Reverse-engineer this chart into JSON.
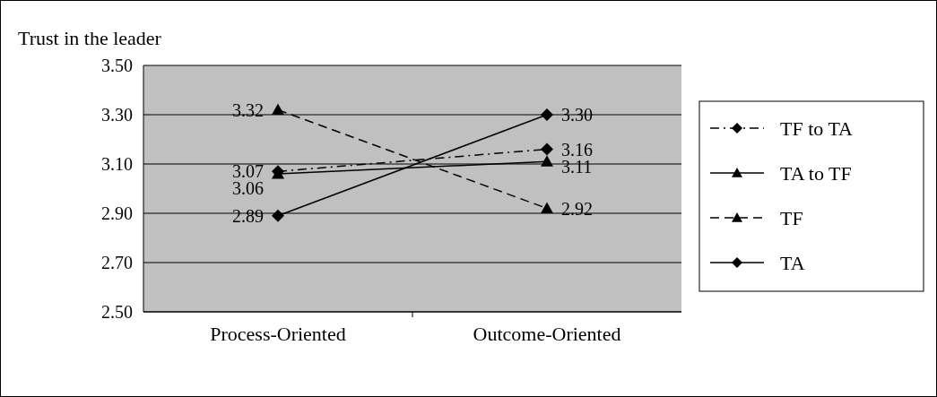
{
  "chart_data": {
    "type": "line",
    "ylabel": "Trust in the leader",
    "categories": [
      "Process-Oriented",
      "Outcome-Oriented"
    ],
    "series": [
      {
        "name": "TF to TA",
        "color": "#000000",
        "values": [
          3.07,
          3.16
        ],
        "value_labels": [
          "3.07",
          "3.16"
        ],
        "marker": "diamond",
        "line_style": "dashdot"
      },
      {
        "name": "TA to TF",
        "color": "#000000",
        "values": [
          3.06,
          3.11
        ],
        "value_labels": [
          "3.06",
          "3.11"
        ],
        "marker": "triangle",
        "line_style": "solid"
      },
      {
        "name": "TF",
        "color": "#000000",
        "values": [
          3.32,
          2.92
        ],
        "value_labels": [
          "3.32",
          "2.92"
        ],
        "marker": "triangle",
        "line_style": "dashed"
      },
      {
        "name": "TA",
        "color": "#000000",
        "values": [
          2.89,
          3.3
        ],
        "value_labels": [
          "2.89",
          "3.30"
        ],
        "marker": "diamond",
        "line_style": "solid"
      }
    ],
    "ylim": [
      2.5,
      3.5
    ],
    "yticks": [
      {
        "value": 2.5,
        "label": "2.50"
      },
      {
        "value": 2.7,
        "label": "2.70"
      },
      {
        "value": 2.9,
        "label": "2.90"
      },
      {
        "value": 3.1,
        "label": "3.10"
      },
      {
        "value": 3.3,
        "label": "3.30"
      },
      {
        "value": 3.5,
        "label": "3.50"
      }
    ],
    "grid": "y",
    "legend": "right"
  }
}
